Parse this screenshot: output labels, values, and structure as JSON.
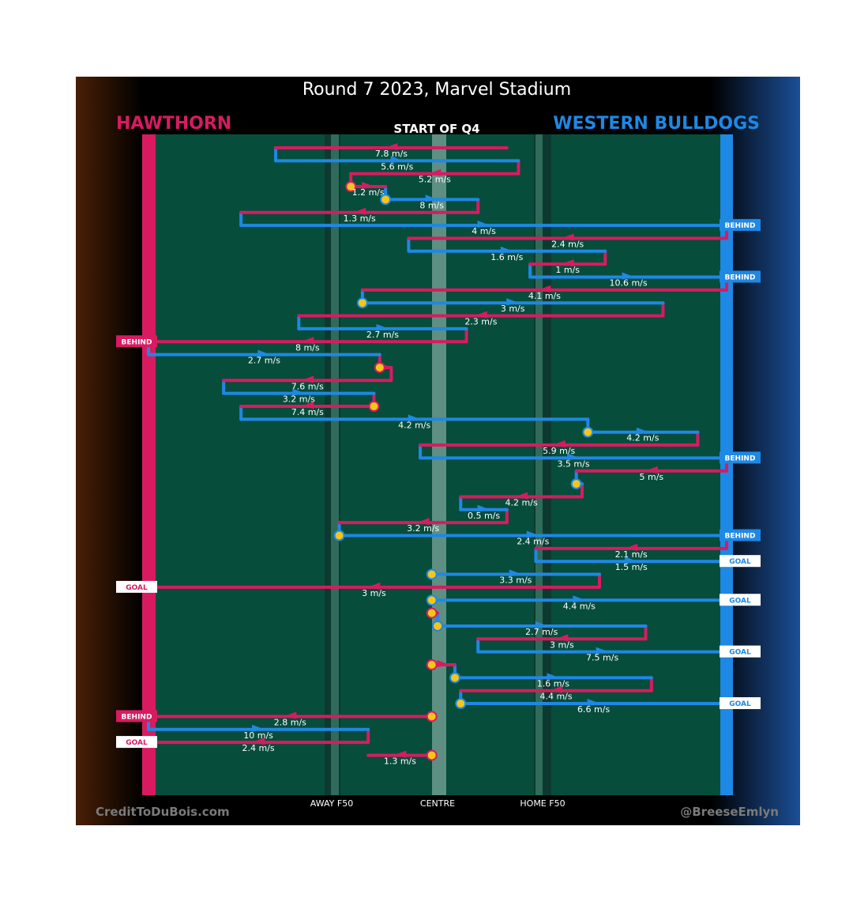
{
  "title": "Round 7 2023, Marvel Stadium",
  "subtitle": "START OF Q4",
  "home_team": "HAWTHORN",
  "away_team": "WESTERN BULLDOGS",
  "credit_left": "CreditToDuBois.com",
  "credit_right": "@BreeseEmlyn",
  "ground_labels": {
    "away_f50": "AWAY F50",
    "centre": "CENTRE",
    "home_f50": "HOME F50"
  },
  "colors": {
    "hawthorn": "#d81b60",
    "bulldogs": "#1e88e5",
    "field": "#064d3c",
    "stoppage": "#f5c518",
    "background": "#000000"
  },
  "chart_data": {
    "type": "line",
    "title": "Round 7 2023, Marvel Stadium",
    "subtitle": "START OF Q4",
    "x_axis": {
      "labels": [
        "AWAY F50",
        "CENTRE",
        "HOME F50"
      ],
      "range": [
        0,
        100
      ]
    },
    "chains": [
      {
        "team": "hawthorn",
        "x": [
          62,
          22
        ],
        "speed": "7.8 m/s"
      },
      {
        "team": "bulldogs",
        "x": [
          22,
          64
        ],
        "speed": "5.6 m/s"
      },
      {
        "team": "hawthorn",
        "x": [
          64,
          35
        ],
        "speed": "5.2 m/s"
      },
      {
        "team": "hawthorn",
        "x": [
          35,
          41
        ],
        "speed": "1.2 m/s",
        "start": "stoppage"
      },
      {
        "team": "bulldogs",
        "x": [
          41,
          57
        ],
        "speed": "8 m/s",
        "start": "stoppage"
      },
      {
        "team": "hawthorn",
        "x": [
          57,
          16
        ],
        "speed": "1.3 m/s"
      },
      {
        "team": "bulldogs",
        "x": [
          16,
          100
        ],
        "speed": "4 m/s",
        "end": "BEHIND"
      },
      {
        "team": "hawthorn",
        "x": [
          100,
          45
        ],
        "speed": "2.4 m/s"
      },
      {
        "team": "bulldogs",
        "x": [
          45,
          79
        ],
        "speed": "1.6 m/s"
      },
      {
        "team": "hawthorn",
        "x": [
          79,
          66
        ],
        "speed": "1 m/s"
      },
      {
        "team": "bulldogs",
        "x": [
          66,
          100
        ],
        "speed": "10.6 m/s",
        "end": "BEHIND"
      },
      {
        "team": "hawthorn",
        "x": [
          100,
          37
        ],
        "speed": "4.1 m/s"
      },
      {
        "team": "bulldogs",
        "x": [
          37,
          89
        ],
        "speed": "3 m/s",
        "start": "stoppage"
      },
      {
        "team": "hawthorn",
        "x": [
          89,
          26
        ],
        "speed": "2.3 m/s"
      },
      {
        "team": "bulldogs",
        "x": [
          26,
          55
        ],
        "speed": "2.7 m/s"
      },
      {
        "team": "hawthorn",
        "x": [
          55,
          0
        ],
        "speed": "8 m/s",
        "end": "BEHIND"
      },
      {
        "team": "bulldogs",
        "x": [
          0,
          40
        ],
        "speed": "2.7 m/s"
      },
      {
        "team": "hawthorn",
        "x": [
          40,
          42
        ],
        "speed": "",
        "start": "stoppage"
      },
      {
        "team": "hawthorn",
        "x": [
          42,
          13
        ],
        "speed": "7.6 m/s"
      },
      {
        "team": "bulldogs",
        "x": [
          13,
          39
        ],
        "speed": "3.2 m/s"
      },
      {
        "team": "hawthorn",
        "x": [
          39,
          16
        ],
        "speed": "7.4 m/s",
        "start": "stoppage"
      },
      {
        "team": "bulldogs",
        "x": [
          16,
          76
        ],
        "speed": "4.2 m/s"
      },
      {
        "team": "bulldogs",
        "x": [
          76,
          95
        ],
        "speed": "4.2 m/s",
        "start": "stoppage"
      },
      {
        "team": "hawthorn",
        "x": [
          95,
          47
        ],
        "speed": "5.9 m/s"
      },
      {
        "team": "bulldogs",
        "x": [
          47,
          100
        ],
        "speed": "3.5 m/s",
        "end": "BEHIND"
      },
      {
        "team": "hawthorn",
        "x": [
          100,
          74
        ],
        "speed": "5 m/s"
      },
      {
        "team": "bulldogs",
        "x": [
          74,
          75
        ],
        "speed": "",
        "start": "stoppage"
      },
      {
        "team": "hawthorn",
        "x": [
          75,
          54
        ],
        "speed": "4.2 m/s"
      },
      {
        "team": "bulldogs",
        "x": [
          54,
          62
        ],
        "speed": "0.5 m/s"
      },
      {
        "team": "hawthorn",
        "x": [
          62,
          33
        ],
        "speed": "3.2 m/s"
      },
      {
        "team": "bulldogs",
        "x": [
          33,
          100
        ],
        "speed": "2.4 m/s",
        "start": "stoppage",
        "end": "BEHIND"
      },
      {
        "team": "hawthorn",
        "x": [
          100,
          67
        ],
        "speed": "2.1 m/s"
      },
      {
        "team": "bulldogs",
        "x": [
          67,
          100
        ],
        "speed": "1.5 m/s",
        "end": "GOAL"
      },
      {
        "team": "bulldogs",
        "x": [
          49,
          78
        ],
        "speed": "3.3 m/s",
        "start": "stoppage"
      },
      {
        "team": "hawthorn",
        "x": [
          78,
          0
        ],
        "speed": "3 m/s",
        "end": "GOAL"
      },
      {
        "team": "bulldogs",
        "x": [
          49,
          100
        ],
        "speed": "4.4 m/s",
        "start": "stoppage",
        "end": "GOAL"
      },
      {
        "team": "hawthorn",
        "x": [
          49,
          50
        ],
        "speed": "",
        "start": "stoppage"
      },
      {
        "team": "bulldogs",
        "x": [
          50,
          86
        ],
        "speed": "2.7 m/s",
        "start": "stoppage"
      },
      {
        "team": "hawthorn",
        "x": [
          86,
          57
        ],
        "speed": "3 m/s"
      },
      {
        "team": "bulldogs",
        "x": [
          57,
          100
        ],
        "speed": "7.5 m/s",
        "end": "GOAL"
      },
      {
        "team": "hawthorn",
        "x": [
          49,
          53
        ],
        "speed": "",
        "start": "stoppage"
      },
      {
        "team": "bulldogs",
        "x": [
          53,
          87
        ],
        "speed": "1.6 m/s",
        "start": "stoppage"
      },
      {
        "team": "hawthorn",
        "x": [
          87,
          54
        ],
        "speed": "4.4 m/s"
      },
      {
        "team": "bulldogs",
        "x": [
          54,
          100
        ],
        "speed": "6.6 m/s",
        "start": "stoppage",
        "end": "GOAL"
      },
      {
        "team": "hawthorn",
        "x": [
          49,
          0
        ],
        "speed": "2.8 m/s",
        "start": "stoppage",
        "end": "BEHIND"
      },
      {
        "team": "bulldogs",
        "x": [
          0,
          38
        ],
        "speed": "10 m/s"
      },
      {
        "team": "hawthorn",
        "x": [
          38,
          0
        ],
        "speed": "2.4 m/s",
        "end": "GOAL"
      },
      {
        "team": "hawthorn",
        "x": [
          49,
          38
        ],
        "speed": "1.3 m/s",
        "start": "stoppage"
      }
    ]
  }
}
